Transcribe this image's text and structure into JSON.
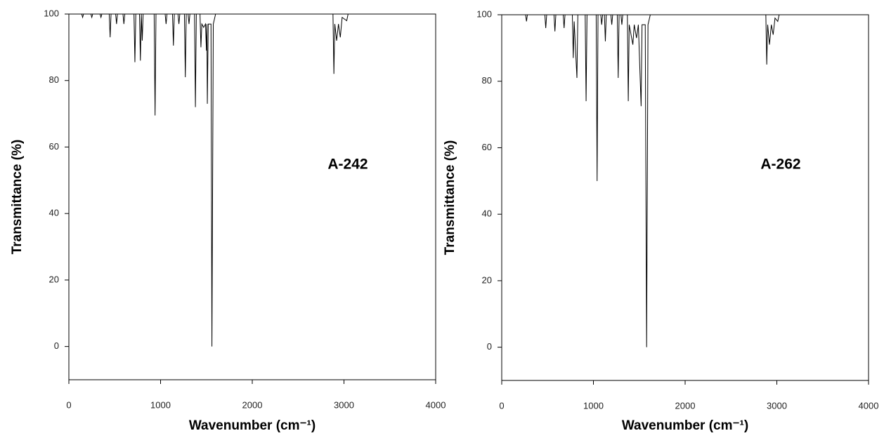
{
  "chart_data": [
    {
      "type": "line",
      "annotation": "A-242",
      "x_label": "Wavenumber (cm⁻¹)",
      "y_label": "Transmittance (%)",
      "color": "#000000",
      "x": [
        0,
        140,
        150,
        160,
        240,
        250,
        260,
        340,
        350,
        360,
        440,
        450,
        460,
        510,
        520,
        530,
        590,
        600,
        610,
        710,
        720,
        730,
        770,
        780,
        790,
        800,
        810,
        930,
        940,
        950,
        1050,
        1060,
        1070,
        1130,
        1140,
        1150,
        1190,
        1200,
        1210,
        1260,
        1270,
        1280,
        1300,
        1310,
        1320,
        1370,
        1380,
        1390,
        1430,
        1440,
        1450,
        1470,
        1490,
        1500,
        1505,
        1510,
        1520,
        1550,
        1560,
        1575,
        1600,
        2880,
        2890,
        2900,
        2920,
        2940,
        2960,
        2980,
        3030,
        3045,
        4000
      ],
      "values": [
        100,
        100,
        99,
        100,
        100,
        99,
        100,
        100,
        99,
        100,
        100,
        93,
        100,
        100,
        97,
        100,
        100,
        97,
        100,
        100,
        85.5,
        100,
        100,
        86,
        100,
        92,
        100,
        100,
        69.5,
        100,
        100,
        97,
        100,
        100,
        90.5,
        100,
        100,
        97,
        100,
        100,
        81,
        100,
        100,
        97,
        100,
        100,
        72,
        100,
        100,
        90,
        97,
        96,
        97,
        89,
        97,
        73,
        97,
        97,
        0,
        97,
        100,
        100,
        82,
        97,
        92,
        97,
        93,
        99,
        98,
        100,
        100
      ],
      "xlim": [
        0,
        4000
      ],
      "xticks": [
        0,
        1000,
        2000,
        3000,
        4000
      ],
      "ylim": [
        -10,
        100
      ],
      "yticks": [
        0,
        20,
        40,
        60,
        80,
        100
      ]
    },
    {
      "type": "line",
      "annotation": "A-262",
      "x_label": "Wavenumber (cm⁻¹)",
      "y_label": "Transmittance (%)",
      "color": "#000000",
      "x": [
        0,
        260,
        270,
        280,
        470,
        480,
        490,
        570,
        580,
        590,
        670,
        680,
        690,
        770,
        780,
        790,
        820,
        830,
        910,
        920,
        930,
        1030,
        1040,
        1050,
        1080,
        1090,
        1100,
        1120,
        1130,
        1140,
        1190,
        1200,
        1210,
        1260,
        1270,
        1280,
        1300,
        1310,
        1320,
        1370,
        1380,
        1390,
        1430,
        1445,
        1470,
        1490,
        1520,
        1530,
        1565,
        1580,
        1595,
        1620,
        2880,
        2890,
        2900,
        2920,
        2940,
        2960,
        2980,
        3010,
        3025,
        4000
      ],
      "values": [
        100,
        100,
        98,
        100,
        100,
        96,
        100,
        100,
        95,
        100,
        100,
        96,
        100,
        100,
        87,
        98,
        81,
        100,
        100,
        74,
        100,
        100,
        50,
        100,
        100,
        97,
        100,
        100,
        92,
        100,
        100,
        97,
        100,
        100,
        81,
        100,
        100,
        97,
        100,
        100,
        74,
        97,
        91,
        97,
        93,
        97,
        72.5,
        97,
        97,
        0,
        97,
        100,
        100,
        85,
        97,
        91,
        97,
        94,
        99,
        98,
        100,
        100
      ],
      "xlim": [
        0,
        4000
      ],
      "xticks": [
        0,
        1000,
        2000,
        3000,
        4000
      ],
      "ylim": [
        -10,
        100
      ],
      "yticks": [
        0,
        20,
        40,
        60,
        80,
        100
      ]
    }
  ]
}
